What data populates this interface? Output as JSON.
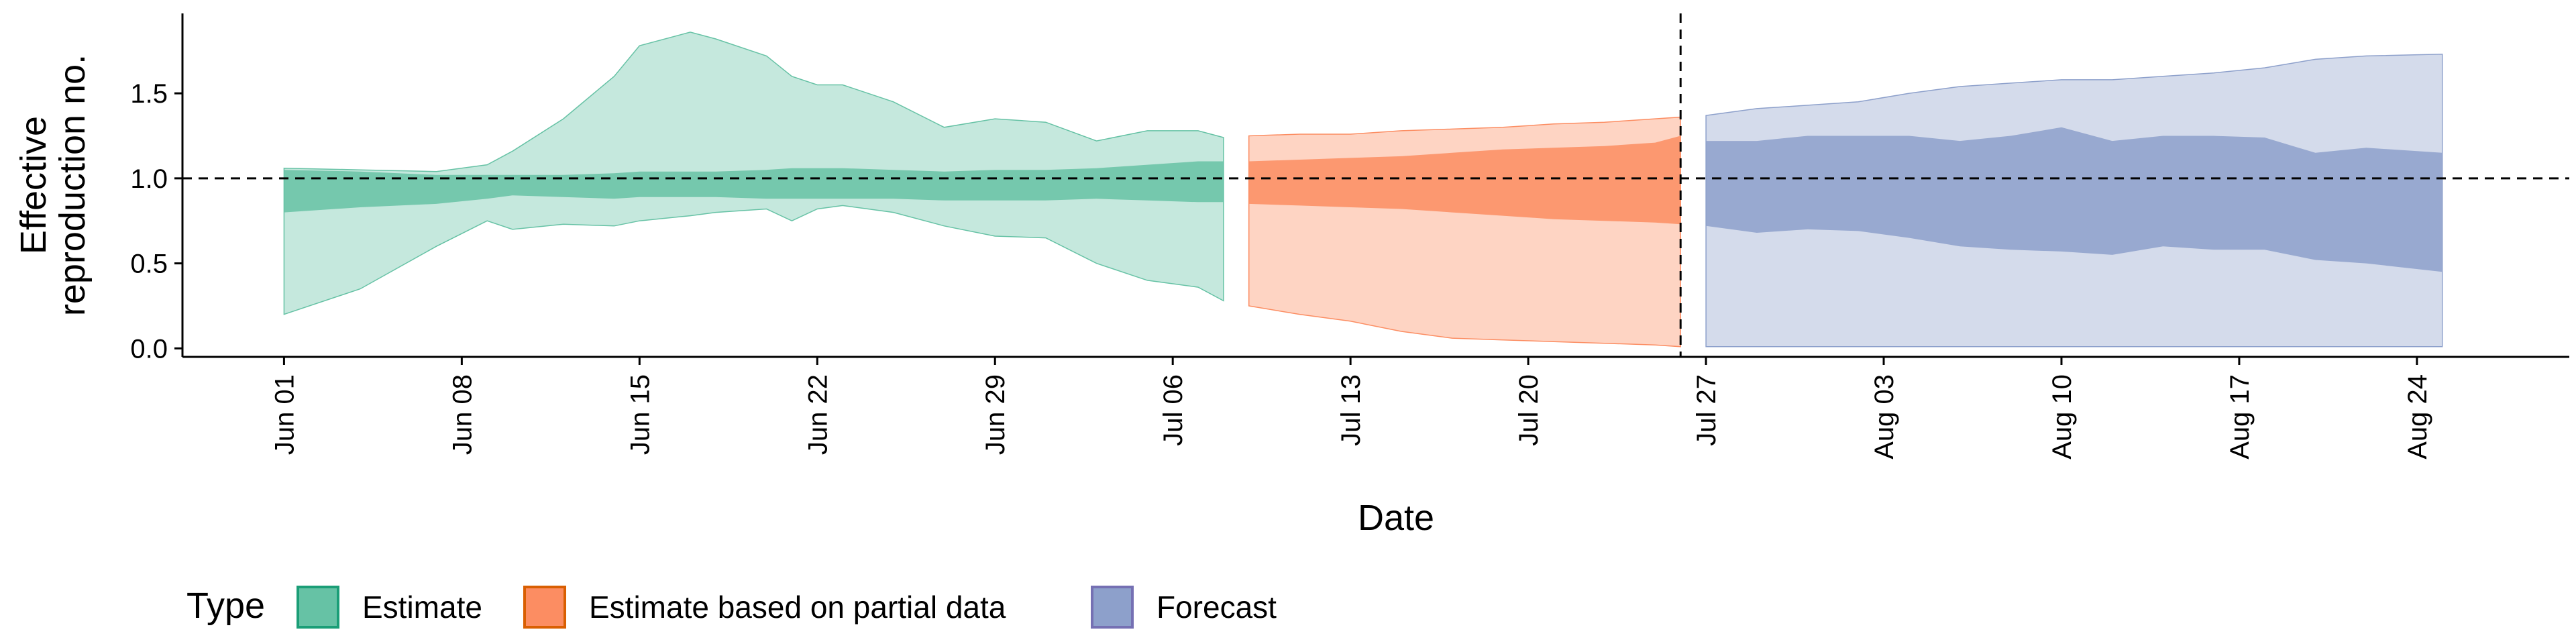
{
  "chart_data": {
    "type": "area",
    "xlabel": "Date",
    "ylabel_lines": [
      "Effective",
      "reproduction no."
    ],
    "x_range": [
      "2020-05-28",
      "2020-08-30"
    ],
    "ylim": [
      -0.05,
      1.97
    ],
    "y_ticks": [
      0.0,
      0.5,
      1.0,
      1.5
    ],
    "y_tick_labels": [
      "0.0",
      "0.5",
      "1.0",
      "1.5"
    ],
    "x_ticks": [
      "2020-06-01",
      "2020-06-08",
      "2020-06-15",
      "2020-06-22",
      "2020-06-29",
      "2020-07-06",
      "2020-07-13",
      "2020-07-20",
      "2020-07-27",
      "2020-08-03",
      "2020-08-10",
      "2020-08-17",
      "2020-08-24"
    ],
    "x_tick_labels": [
      "Jun 01",
      "Jun 08",
      "Jun 15",
      "Jun 22",
      "Jun 29",
      "Jul 06",
      "Jul 13",
      "Jul 20",
      "Jul 27",
      "Aug 03",
      "Aug 10",
      "Aug 17",
      "Aug 24"
    ],
    "reference_line_y": 1.0,
    "vertical_line_x": "2020-07-26",
    "grid": false,
    "legend": {
      "title": "Type",
      "position": "bottom",
      "items": [
        "Estimate",
        "Estimate based on partial data",
        "Forecast"
      ]
    },
    "series": [
      {
        "name": "Estimate",
        "fill_color": "#66c2a5",
        "border_color": "#1b9e77",
        "x": [
          "2020-06-01",
          "2020-06-04",
          "2020-06-07",
          "2020-06-09",
          "2020-06-10",
          "2020-06-12",
          "2020-06-14",
          "2020-06-15",
          "2020-06-17",
          "2020-06-18",
          "2020-06-20",
          "2020-06-21",
          "2020-06-22",
          "2020-06-23",
          "2020-06-25",
          "2020-06-27",
          "2020-06-29",
          "2020-07-01",
          "2020-07-03",
          "2020-07-05",
          "2020-07-07",
          "2020-07-08"
        ],
        "lower_90": [
          0.2,
          0.35,
          0.6,
          0.75,
          0.7,
          0.73,
          0.72,
          0.75,
          0.78,
          0.8,
          0.82,
          0.75,
          0.82,
          0.84,
          0.8,
          0.72,
          0.66,
          0.65,
          0.5,
          0.4,
          0.36,
          0.28
        ],
        "upper_90": [
          1.06,
          1.05,
          1.04,
          1.08,
          1.16,
          1.35,
          1.6,
          1.78,
          1.86,
          1.82,
          1.72,
          1.6,
          1.55,
          1.55,
          1.45,
          1.3,
          1.35,
          1.33,
          1.22,
          1.28,
          1.28,
          1.24
        ],
        "lower_50": [
          0.8,
          0.83,
          0.85,
          0.88,
          0.9,
          0.89,
          0.88,
          0.89,
          0.89,
          0.89,
          0.88,
          0.88,
          0.88,
          0.88,
          0.88,
          0.87,
          0.87,
          0.87,
          0.88,
          0.87,
          0.86,
          0.86
        ],
        "upper_50": [
          1.05,
          1.04,
          1.02,
          1.02,
          1.02,
          1.02,
          1.03,
          1.04,
          1.04,
          1.04,
          1.05,
          1.06,
          1.06,
          1.06,
          1.05,
          1.04,
          1.05,
          1.05,
          1.06,
          1.08,
          1.1,
          1.1
        ]
      },
      {
        "name": "Estimate based on partial data",
        "fill_color": "#fc8d62",
        "border_color": "#d95f02",
        "x": [
          "2020-07-09",
          "2020-07-11",
          "2020-07-13",
          "2020-07-15",
          "2020-07-17",
          "2020-07-19",
          "2020-07-21",
          "2020-07-23",
          "2020-07-25",
          "2020-07-26"
        ],
        "lower_90": [
          0.25,
          0.2,
          0.16,
          0.1,
          0.06,
          0.05,
          0.04,
          0.03,
          0.02,
          0.01
        ],
        "upper_90": [
          1.25,
          1.26,
          1.26,
          1.28,
          1.29,
          1.3,
          1.32,
          1.33,
          1.35,
          1.36
        ],
        "lower_50": [
          0.85,
          0.84,
          0.83,
          0.82,
          0.8,
          0.78,
          0.76,
          0.75,
          0.74,
          0.73
        ],
        "upper_50": [
          1.1,
          1.11,
          1.12,
          1.13,
          1.15,
          1.17,
          1.18,
          1.19,
          1.21,
          1.25
        ]
      },
      {
        "name": "Forecast",
        "fill_color": "#8da0cb",
        "border_color": "#7570b3",
        "x": [
          "2020-07-27",
          "2020-07-29",
          "2020-07-31",
          "2020-08-02",
          "2020-08-04",
          "2020-08-06",
          "2020-08-08",
          "2020-08-10",
          "2020-08-12",
          "2020-08-14",
          "2020-08-16",
          "2020-08-18",
          "2020-08-20",
          "2020-08-22",
          "2020-08-25"
        ],
        "lower_90": [
          0.01,
          0.01,
          0.01,
          0.01,
          0.01,
          0.01,
          0.01,
          0.01,
          0.01,
          0.01,
          0.01,
          0.01,
          0.01,
          0.01,
          0.01
        ],
        "upper_90": [
          1.37,
          1.41,
          1.43,
          1.45,
          1.5,
          1.54,
          1.56,
          1.58,
          1.58,
          1.6,
          1.62,
          1.65,
          1.7,
          1.72,
          1.73
        ],
        "lower_50": [
          0.72,
          0.68,
          0.7,
          0.69,
          0.65,
          0.6,
          0.58,
          0.57,
          0.55,
          0.6,
          0.58,
          0.58,
          0.52,
          0.5,
          0.45
        ],
        "upper_50": [
          1.22,
          1.22,
          1.25,
          1.25,
          1.25,
          1.22,
          1.25,
          1.3,
          1.22,
          1.25,
          1.25,
          1.24,
          1.15,
          1.18,
          1.15
        ]
      }
    ]
  }
}
